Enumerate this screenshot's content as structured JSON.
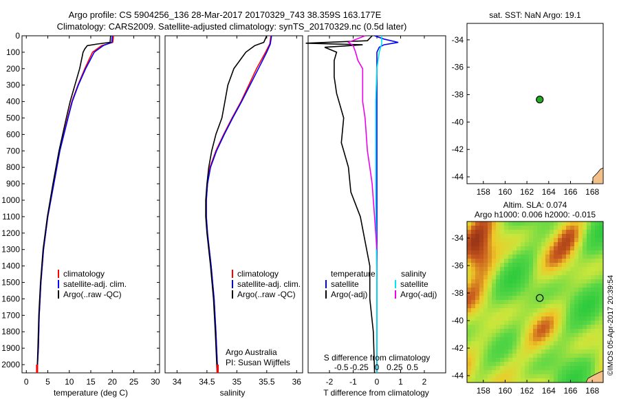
{
  "header": {
    "line1": "Argo profile: CS 5904256_136 28-Mar-2017 20170329_743 38.359S 163.177E",
    "line2": "Climatology: CARS2009. Satellite-adjusted climatology: synTS_20170329.nc (0.5d later)"
  },
  "watermark": "©IMOS 05-Apr-2017 20:39:54",
  "colors": {
    "climatology": "#ff0000",
    "satellite": "#0000ff",
    "argo": "#000000",
    "salinity_satellite": "#00e5ee",
    "salinity_argo": "#ee00ee",
    "marker": "#22aa22",
    "land": "#f4c08a"
  },
  "chart_data": [
    {
      "type": "line",
      "panel": "temperature",
      "xlabel": "temperature (deg C)",
      "ylabel": "",
      "xlim": [
        -1,
        31
      ],
      "ylim": [
        2050,
        0
      ],
      "xticks": [
        0,
        5,
        10,
        15,
        20,
        25,
        30
      ],
      "yticks": [
        0,
        100,
        200,
        300,
        400,
        500,
        600,
        700,
        800,
        900,
        1000,
        1100,
        1200,
        1300,
        1400,
        1500,
        1600,
        1700,
        1800,
        1900,
        2000
      ],
      "legend_position": "center-left",
      "series": [
        {
          "name": "climatology",
          "color": "#ff0000",
          "depth": [
            0,
            40,
            60,
            100,
            150,
            200,
            300,
            400,
            500,
            700,
            900,
            1100,
            1300,
            1500,
            1700,
            1900,
            2050
          ],
          "values": [
            20.3,
            20.1,
            17.5,
            15.4,
            14.5,
            13.6,
            12.0,
            10.6,
            9.6,
            7.8,
            6.4,
            5.0,
            4.0,
            3.4,
            3.0,
            2.8,
            2.5
          ]
        },
        {
          "name": "satellite-adj. clim.",
          "color": "#0000ff",
          "depth": [
            0,
            40,
            60,
            100,
            150,
            200,
            300,
            400,
            500,
            700,
            900,
            1100,
            1300,
            1500,
            1700,
            1900,
            2050
          ],
          "values": [
            20.0,
            19.9,
            17.9,
            15.8,
            14.8,
            13.8,
            12.1,
            10.7,
            9.7,
            7.8,
            6.4,
            5.0,
            4.0,
            3.4,
            3.0,
            2.8,
            2.5
          ]
        },
        {
          "name": "Argo(..raw -QC)",
          "color": "#000000",
          "depth": [
            0,
            40,
            50,
            60,
            80,
            100,
            150,
            200,
            300,
            400,
            500,
            700,
            900,
            1100,
            1300,
            1500,
            1700,
            1900,
            2050
          ],
          "values": [
            19.6,
            19.5,
            16.5,
            14.2,
            13.6,
            13.2,
            12.8,
            12.4,
            11.3,
            10.2,
            9.3,
            7.6,
            6.2,
            4.9,
            3.9,
            3.3,
            2.9,
            2.7,
            2.5
          ]
        }
      ]
    },
    {
      "type": "line",
      "panel": "salinity",
      "xlabel": "salinity",
      "xlim": [
        33.8,
        36.1
      ],
      "ylim": [
        2050,
        0
      ],
      "xticks": [
        34,
        34.5,
        35,
        35.5,
        36
      ],
      "legend_position": "center-right",
      "annotation": [
        "Argo Australia",
        "PI: Susan Wijffels"
      ],
      "series": [
        {
          "name": "climatology",
          "color": "#ff0000",
          "depth": [
            0,
            50,
            100,
            200,
            300,
            400,
            500,
            600,
            700,
            800,
            900,
            1000,
            1100,
            1200,
            1300,
            1400,
            1600,
            1800,
            2050
          ],
          "values": [
            35.57,
            35.55,
            35.48,
            35.33,
            35.2,
            35.07,
            34.92,
            34.78,
            34.65,
            34.55,
            34.51,
            34.49,
            34.49,
            34.51,
            34.54,
            34.57,
            34.62,
            34.65,
            34.68
          ]
        },
        {
          "name": "satellite-adj. clim.",
          "color": "#0000ff",
          "depth": [
            0,
            50,
            100,
            200,
            300,
            400,
            500,
            600,
            700,
            800,
            900,
            1000,
            1100,
            1200,
            1300,
            1400,
            1600,
            1800,
            2050
          ],
          "values": [
            35.58,
            35.56,
            35.5,
            35.36,
            35.22,
            35.08,
            34.93,
            34.79,
            34.66,
            34.56,
            34.51,
            34.49,
            34.49,
            34.51,
            34.54,
            34.57,
            34.62,
            34.65,
            34.68
          ]
        },
        {
          "name": "Argo(..raw -QC)",
          "color": "#000000",
          "depth": [
            0,
            40,
            60,
            100,
            150,
            200,
            300,
            400,
            500,
            600,
            700,
            800,
            900,
            1000,
            1100,
            1200,
            1300,
            1400,
            1600,
            1800,
            2050
          ],
          "values": [
            35.5,
            35.45,
            35.3,
            35.15,
            35.05,
            34.95,
            34.85,
            34.8,
            34.75,
            34.65,
            34.58,
            34.53,
            34.5,
            34.48,
            34.48,
            34.5,
            34.53,
            34.56,
            34.61,
            34.64,
            34.67
          ]
        }
      ]
    },
    {
      "type": "line",
      "panel": "difference",
      "xlabel": "T difference from climatology",
      "xlabel_top": "S difference from climatology",
      "xlim": [
        -2.9,
        2.9
      ],
      "ylim": [
        2050,
        0
      ],
      "xticks": [
        -2,
        -1,
        0,
        1,
        2
      ],
      "xtick_labels_top": [
        "-0.5",
        "-0.25",
        "0",
        "0.25",
        "0.5"
      ],
      "legend": {
        "temperature_title": "temperature",
        "salinity_title": "salinity",
        "items": [
          {
            "label": "satellite",
            "color": "#0000ff"
          },
          {
            "label": "Argo(-adj)",
            "color": "#000000"
          },
          {
            "label": "satellite",
            "color": "#00e5ee"
          },
          {
            "label": "Argo(-adj)",
            "color": "#ee00ee"
          }
        ]
      },
      "series": [
        {
          "name": "T satellite",
          "color": "#0000ff",
          "depth": [
            0,
            20,
            40,
            55,
            70,
            100,
            200,
            400,
            800,
            1200,
            1600,
            2050
          ],
          "values": [
            -0.1,
            0.3,
            0.9,
            0.3,
            0.1,
            0.0,
            0.0,
            0.0,
            0.0,
            0.0,
            0.0,
            0.0
          ]
        },
        {
          "name": "T Argo(-adj)",
          "color": "#000000",
          "depth": [
            0,
            30,
            45,
            55,
            70,
            100,
            150,
            250,
            350,
            500,
            650,
            800,
            950,
            1100,
            1250,
            1400,
            1600,
            1800,
            2050
          ],
          "values": [
            -0.2,
            -0.4,
            -3.0,
            -0.6,
            -2.2,
            -1.7,
            -1.8,
            -1.8,
            -1.7,
            -1.4,
            -1.5,
            -1.2,
            -1.1,
            -0.7,
            -0.5,
            -0.3,
            -0.3,
            -0.15,
            -0.1
          ]
        },
        {
          "name": "S satellite",
          "color": "#00e5ee",
          "depth": [
            0,
            50,
            100,
            200,
            400,
            700,
            1000,
            1500,
            2050
          ],
          "values": [
            0.2,
            0.2,
            0.1,
            0.0,
            -0.05,
            -0.05,
            -0.05,
            0.0,
            0.0
          ]
        },
        {
          "name": "S Argo(-adj)",
          "color": "#ee00ee",
          "depth": [
            0,
            40,
            60,
            100,
            150,
            200,
            300,
            400,
            500,
            600,
            700,
            800,
            900,
            1000,
            1100,
            1200,
            1300
          ],
          "values": [
            -0.5,
            -1.2,
            -1.0,
            -0.9,
            -0.8,
            -0.6,
            -0.6,
            -0.6,
            -0.5,
            -0.45,
            -0.4,
            -0.3,
            -0.2,
            -0.15,
            -0.1,
            -0.05,
            0.0
          ]
        }
      ]
    },
    {
      "type": "scatter",
      "panel": "sst-map",
      "title": "sat. SST: NaN Argo: 19.1",
      "xlim": [
        156.5,
        169
      ],
      "ylim": [
        -44.5,
        -32.8
      ],
      "xticks": [
        158,
        160,
        162,
        164,
        166,
        168
      ],
      "yticks": [
        -34,
        -36,
        -38,
        -40,
        -42,
        -44
      ],
      "points": [
        {
          "lon": 163.177,
          "lat": -38.359
        }
      ]
    },
    {
      "type": "heatmap",
      "panel": "sla-map",
      "title_line1": "Altim. SLA: 0.074",
      "title_line2": "Argo h1000: 0.006 h2000: -0.015",
      "xlim": [
        156.5,
        169
      ],
      "ylim": [
        -44.5,
        -32.8
      ],
      "xticks": [
        158,
        160,
        162,
        164,
        166,
        168
      ],
      "yticks": [
        -34,
        -36,
        -38,
        -40,
        -42,
        -44
      ],
      "points": [
        {
          "lon": 163.177,
          "lat": -38.359
        }
      ]
    }
  ]
}
